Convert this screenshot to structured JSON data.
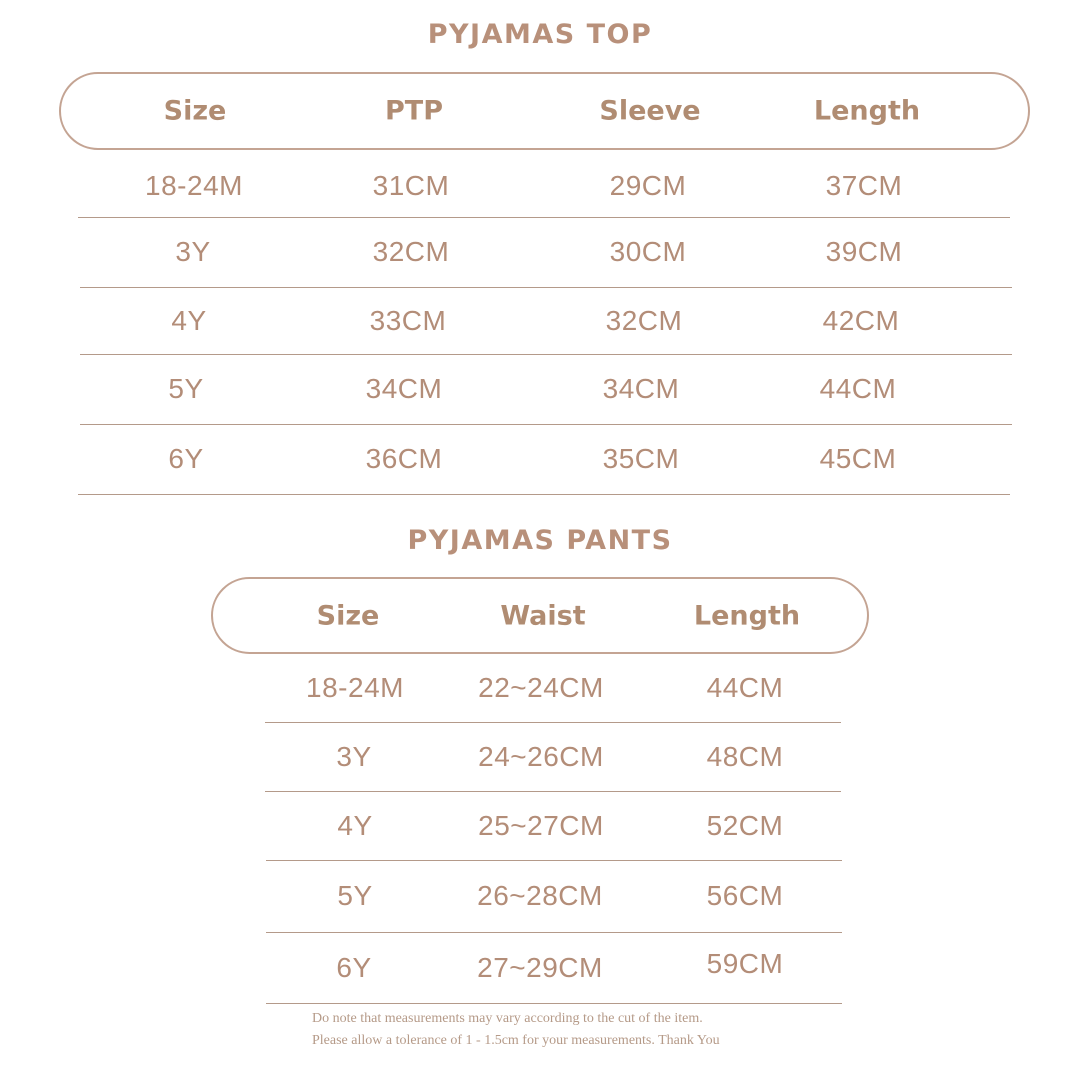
{
  "top": {
    "title": "PYJAMAS TOP",
    "headers": [
      "Size",
      "PTP",
      "Sleeve",
      "Length"
    ],
    "rows": [
      [
        "18-24M",
        "31CM",
        "29CM",
        "37CM"
      ],
      [
        "3Y",
        "32CM",
        "30CM",
        "39CM"
      ],
      [
        "4Y",
        "33CM",
        "32CM",
        "42CM"
      ],
      [
        "5Y",
        "34CM",
        "34CM",
        "44CM"
      ],
      [
        "6Y",
        "36CM",
        "35CM",
        "45CM"
      ]
    ]
  },
  "pants": {
    "title": "PYJAMAS PANTS",
    "headers": [
      "Size",
      "Waist",
      "Length"
    ],
    "rows": [
      [
        "18-24M",
        "22~24CM",
        "44CM"
      ],
      [
        "3Y",
        "24~26CM",
        "48CM"
      ],
      [
        "4Y",
        "25~27CM",
        "52CM"
      ],
      [
        "5Y",
        "26~28CM",
        "56CM"
      ],
      [
        "6Y",
        "27~29CM",
        "59CM"
      ]
    ]
  },
  "notes": {
    "line1": "Do note that measurements may vary according to the cut of the item.",
    "line2": "Please allow a tolerance of 1 - 1.5cm for your measurements. Thank You"
  },
  "colors": {
    "text": "#b38d78",
    "border": "#c4a493"
  }
}
